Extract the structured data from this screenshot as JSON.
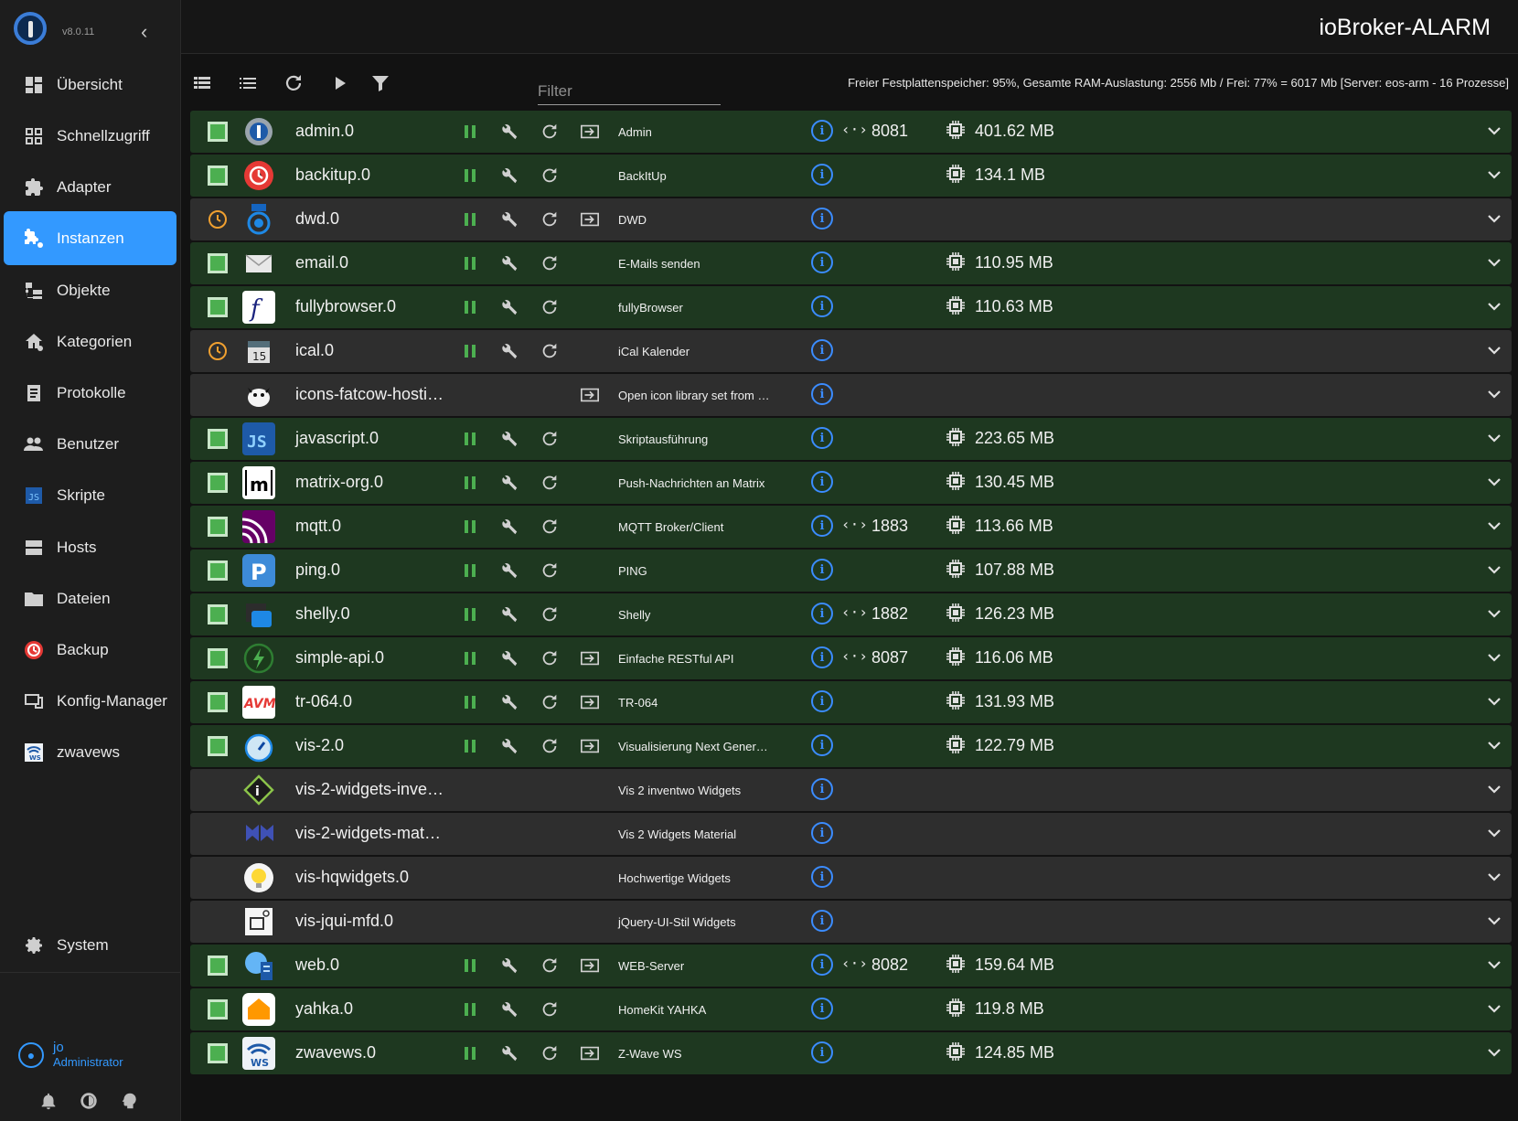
{
  "sidebar": {
    "version": "v8.0.11",
    "items": [
      {
        "label": "Übersicht",
        "icon": "dashboard-icon",
        "active": false
      },
      {
        "label": "Schnellzugriff",
        "icon": "grid-icon",
        "active": false
      },
      {
        "label": "Adapter",
        "icon": "puzzle-icon",
        "active": false
      },
      {
        "label": "Instanzen",
        "icon": "instances-icon",
        "active": true
      },
      {
        "label": "Objekte",
        "icon": "objects-tree-icon",
        "active": false
      },
      {
        "label": "Kategorien",
        "icon": "home-category-icon",
        "active": false
      },
      {
        "label": "Protokolle",
        "icon": "log-icon",
        "active": false
      },
      {
        "label": "Benutzer",
        "icon": "users-icon",
        "active": false
      },
      {
        "label": "Skripte",
        "icon": "js-icon",
        "active": false
      },
      {
        "label": "Hosts",
        "icon": "hosts-icon",
        "active": false
      },
      {
        "label": "Dateien",
        "icon": "folder-icon",
        "active": false
      },
      {
        "label": "Backup",
        "icon": "backup-icon",
        "active": false
      },
      {
        "label": "Konfig-Manager",
        "icon": "config-manager-icon",
        "active": false
      },
      {
        "label": "zwavews",
        "icon": "zwavews-icon",
        "active": false
      }
    ],
    "system_label": "System",
    "user": {
      "name": "jo",
      "role": "Administrator"
    }
  },
  "header": {
    "title": "ioBroker-ALARM"
  },
  "toolbar": {
    "filter_placeholder": "Filter",
    "status_text": "Freier Festplattenspeicher: 95%, Gesamte RAM-Auslastung: 2556 Mb / Frei: 77% = 6017 Mb [Server: eos-arm - 16 Prozesse]"
  },
  "colors": {
    "accent": "#3399ff",
    "running_row": "#1e3820",
    "idle_row": "#2e2e2e",
    "status_green": "#4caf50",
    "status_orange": "#f0a030"
  },
  "instances": [
    {
      "name": "admin.0",
      "title": "Admin",
      "status": "running",
      "controls": true,
      "link": true,
      "port": "8081",
      "memory": "401.62 MB",
      "icon": "admin-gear-icon"
    },
    {
      "name": "backitup.0",
      "title": "BackItUp",
      "status": "running",
      "controls": true,
      "link": false,
      "port": "",
      "memory": "134.1 MB",
      "icon": "backitup-icon"
    },
    {
      "name": "dwd.0",
      "title": "DWD",
      "status": "scheduled",
      "controls": true,
      "link": true,
      "port": "",
      "memory": "",
      "icon": "dwd-icon"
    },
    {
      "name": "email.0",
      "title": "E-Mails senden",
      "status": "running",
      "controls": true,
      "link": false,
      "port": "",
      "memory": "110.95 MB",
      "icon": "email-icon"
    },
    {
      "name": "fullybrowser.0",
      "title": "fullyBrowser",
      "status": "running",
      "controls": true,
      "link": false,
      "port": "",
      "memory": "110.63 MB",
      "icon": "fullybrowser-icon"
    },
    {
      "name": "ical.0",
      "title": "iCal Kalender",
      "status": "scheduled",
      "controls": true,
      "link": false,
      "port": "",
      "memory": "",
      "icon": "ical-icon"
    },
    {
      "name": "icons-fatcow-hosti…",
      "title": "Open icon library set from …",
      "status": "none",
      "controls": false,
      "link": true,
      "port": "",
      "memory": "",
      "icon": "fatcow-cow-icon"
    },
    {
      "name": "javascript.0",
      "title": "Skriptausführung",
      "status": "running",
      "controls": true,
      "link": false,
      "port": "",
      "memory": "223.65 MB",
      "icon": "javascript-icon"
    },
    {
      "name": "matrix-org.0",
      "title": "Push-Nachrichten an Matrix",
      "status": "running",
      "controls": true,
      "link": false,
      "port": "",
      "memory": "130.45 MB",
      "icon": "matrix-icon"
    },
    {
      "name": "mqtt.0",
      "title": "MQTT Broker/Client",
      "status": "running",
      "controls": true,
      "link": false,
      "port": "1883",
      "memory": "113.66 MB",
      "icon": "mqtt-icon"
    },
    {
      "name": "ping.0",
      "title": "PING",
      "status": "running",
      "controls": true,
      "link": false,
      "port": "",
      "memory": "107.88 MB",
      "icon": "ping-icon"
    },
    {
      "name": "shelly.0",
      "title": "Shelly",
      "status": "running",
      "controls": true,
      "link": false,
      "port": "1882",
      "memory": "126.23 MB",
      "icon": "shelly-icon"
    },
    {
      "name": "simple-api.0",
      "title": "Einfache RESTful API",
      "status": "running",
      "controls": true,
      "link": true,
      "port": "8087",
      "memory": "116.06 MB",
      "icon": "simple-api-icon"
    },
    {
      "name": "tr-064.0",
      "title": "TR-064",
      "status": "running",
      "controls": true,
      "link": true,
      "port": "",
      "memory": "131.93 MB",
      "icon": "avm-icon"
    },
    {
      "name": "vis-2.0",
      "title": "Visualisierung Next Gener…",
      "status": "running",
      "controls": true,
      "link": true,
      "port": "",
      "memory": "122.79 MB",
      "icon": "vis2-gauge-icon"
    },
    {
      "name": "vis-2-widgets-inve…",
      "title": "Vis 2 inventwo Widgets",
      "status": "none",
      "controls": false,
      "link": false,
      "port": "",
      "memory": "",
      "icon": "inventwo-icon"
    },
    {
      "name": "vis-2-widgets-mat…",
      "title": "Vis 2 Widgets Material",
      "status": "none",
      "controls": false,
      "link": false,
      "port": "",
      "memory": "",
      "icon": "material-icon"
    },
    {
      "name": "vis-hqwidgets.0",
      "title": "Hochwertige Widgets",
      "status": "none",
      "controls": false,
      "link": false,
      "port": "",
      "memory": "",
      "icon": "lightbulb-icon"
    },
    {
      "name": "vis-jqui-mfd.0",
      "title": "jQuery-UI-Stil Widgets",
      "status": "none",
      "controls": false,
      "link": false,
      "port": "",
      "memory": "",
      "icon": "jqui-icon"
    },
    {
      "name": "web.0",
      "title": "WEB-Server",
      "status": "running",
      "controls": true,
      "link": true,
      "port": "8082",
      "memory": "159.64 MB",
      "icon": "web-server-icon"
    },
    {
      "name": "yahka.0",
      "title": "HomeKit YAHKA",
      "status": "running",
      "controls": true,
      "link": false,
      "port": "",
      "memory": "119.8 MB",
      "icon": "homekit-icon"
    },
    {
      "name": "zwavews.0",
      "title": "Z-Wave WS",
      "status": "running",
      "controls": true,
      "link": true,
      "port": "",
      "memory": "124.85 MB",
      "icon": "zwavews-icon"
    }
  ]
}
